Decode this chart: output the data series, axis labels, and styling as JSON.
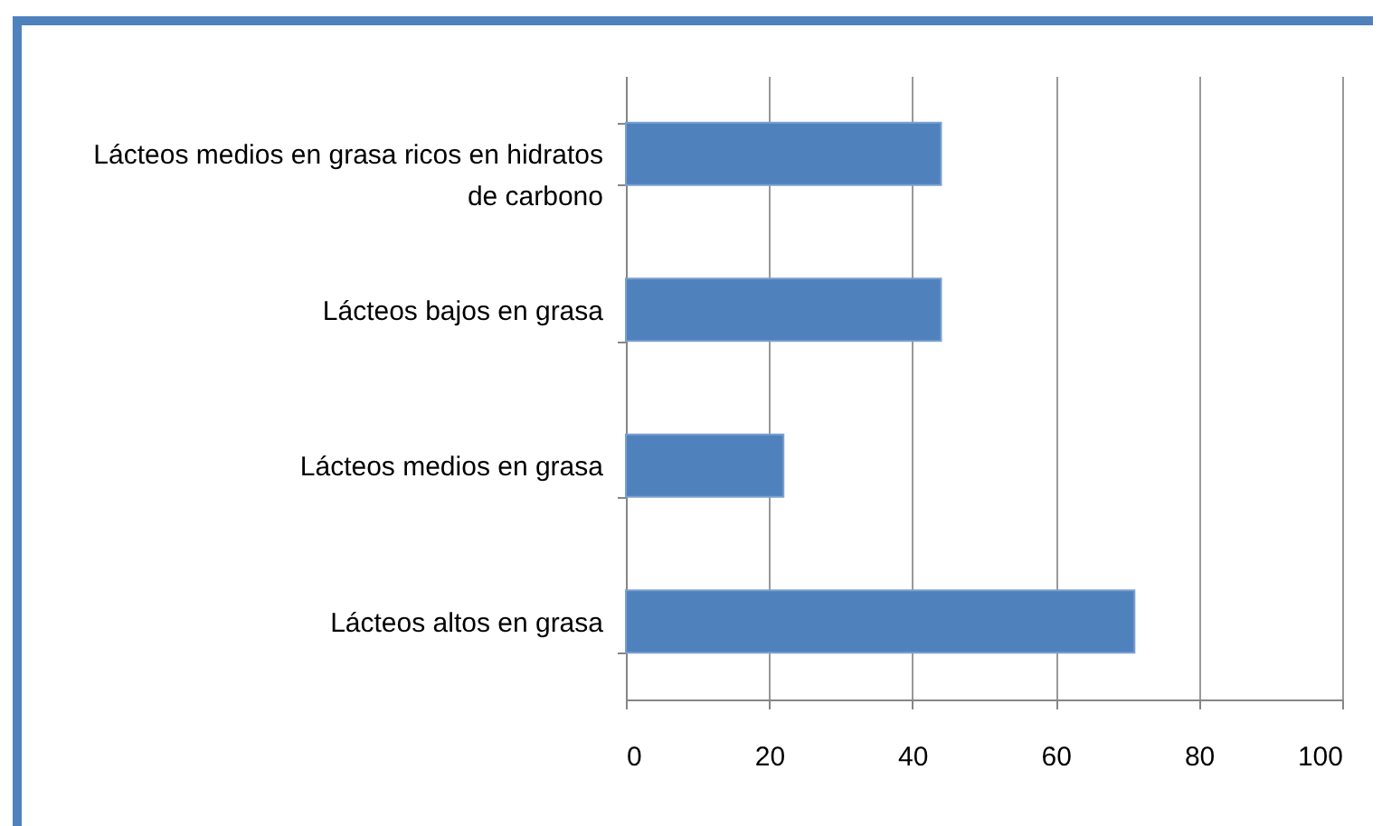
{
  "chart_data": {
    "type": "bar",
    "orientation": "horizontal",
    "categories": [
      "Lácteos medios en grasa ricos en hidratos de carbono",
      "Lácteos bajos en grasa",
      "Lácteos medios en grasa",
      "Lácteos altos en grasa"
    ],
    "values": [
      44,
      44,
      22,
      71
    ],
    "color": "#4f81bd",
    "xlim": [
      0,
      100
    ],
    "xticks": [
      0,
      20,
      40,
      60,
      80,
      100
    ],
    "grid": "x"
  }
}
